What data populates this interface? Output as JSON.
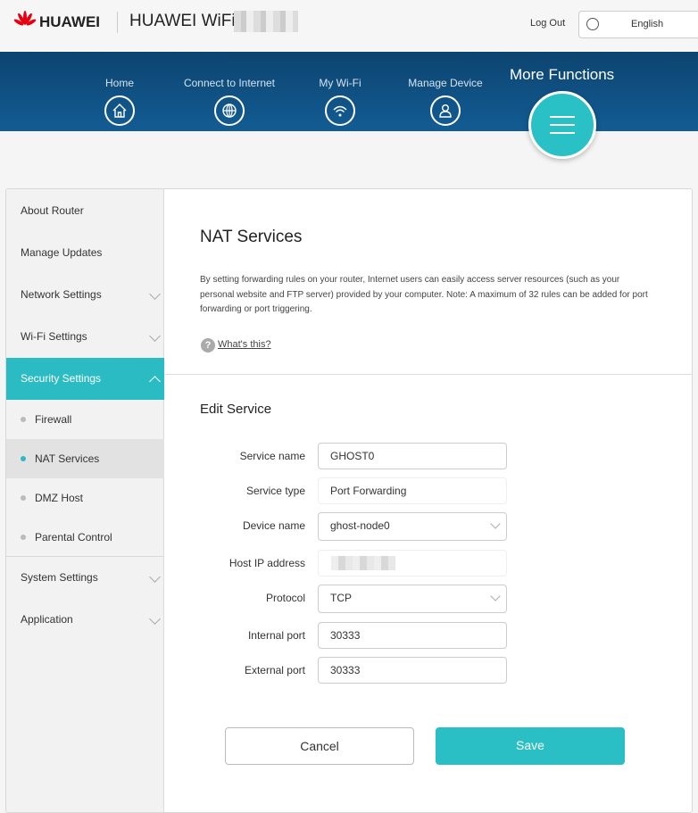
{
  "header": {
    "brand": "HUAWEI",
    "product": "HUAWEI WiFi",
    "logout": "Log Out",
    "language": "English"
  },
  "nav": [
    {
      "label": "Home",
      "icon": "home-icon"
    },
    {
      "label": "Connect to Internet",
      "icon": "globe-icon"
    },
    {
      "label": "My Wi-Fi",
      "icon": "wifi-icon"
    },
    {
      "label": "Manage Device",
      "icon": "user-icon"
    }
  ],
  "more_functions": "More Functions",
  "sidebar": {
    "items": [
      "About Router",
      "Manage Updates",
      "Network Settings",
      "Wi-Fi Settings",
      "Security Settings",
      "System Settings",
      "Application"
    ],
    "security_sub": [
      "Firewall",
      "NAT Services",
      "DMZ Host",
      "Parental Control"
    ]
  },
  "main": {
    "title": "NAT Services",
    "description": "By setting forwarding rules on your router, Internet users can easily access server resources (such as your personal website and FTP server) provided by your computer. Note: A maximum of 32 rules can be added for port forwarding or port triggering.",
    "help": "What's this?",
    "section": "Edit Service"
  },
  "form": {
    "service_name": {
      "label": "Service name",
      "value": "GHOST0"
    },
    "service_type": {
      "label": "Service type",
      "value": "Port Forwarding"
    },
    "device_name": {
      "label": "Device name",
      "value": "ghost-node0"
    },
    "host_ip": {
      "label": "Host IP address",
      "value": ""
    },
    "protocol": {
      "label": "Protocol",
      "value": "TCP"
    },
    "internal_port": {
      "label": "Internal port",
      "value": "30333"
    },
    "external_port": {
      "label": "External port",
      "value": "30333"
    }
  },
  "buttons": {
    "cancel": "Cancel",
    "save": "Save"
  },
  "colors": {
    "accent": "#2abfc4",
    "banner": "#0f5184",
    "brand_red": "#e60012"
  }
}
